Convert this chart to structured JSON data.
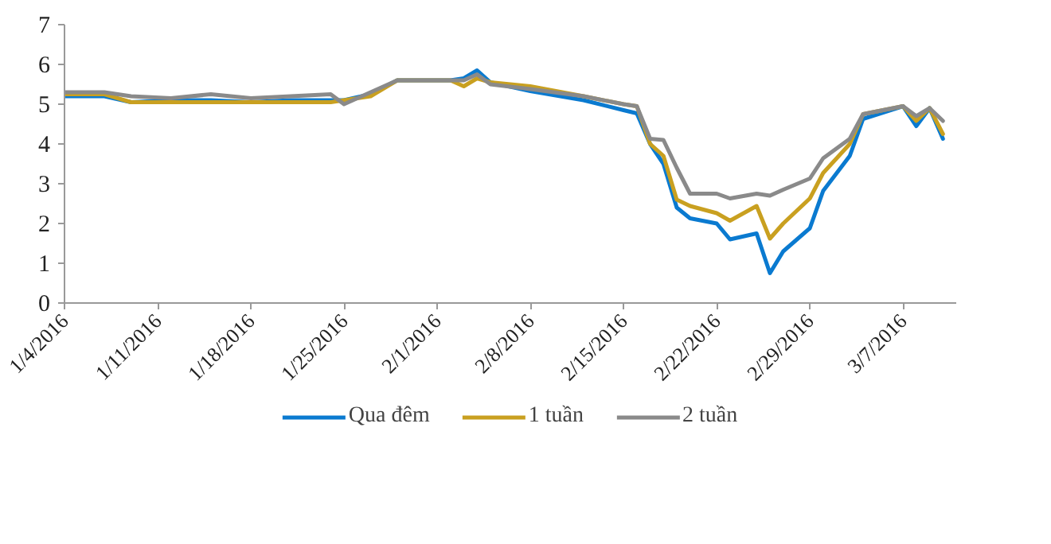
{
  "chart_data": {
    "type": "line",
    "x": [
      "2016-01-04",
      "2016-01-07",
      "2016-01-09",
      "2016-01-12",
      "2016-01-15",
      "2016-01-18",
      "2016-01-21",
      "2016-01-24",
      "2016-01-25",
      "2016-01-27",
      "2016-01-29",
      "2016-02-02",
      "2016-02-03",
      "2016-02-04",
      "2016-02-05",
      "2016-02-08",
      "2016-02-12",
      "2016-02-15",
      "2016-02-16",
      "2016-02-17",
      "2016-02-18",
      "2016-02-19",
      "2016-02-20",
      "2016-02-22",
      "2016-02-23",
      "2016-02-25",
      "2016-02-26",
      "2016-02-27",
      "2016-02-29",
      "2016-03-01",
      "2016-03-03",
      "2016-03-04",
      "2016-03-07",
      "2016-03-08",
      "2016-03-09",
      "2016-03-10"
    ],
    "series": [
      {
        "name": "Qua đêm",
        "color": "#0a7ad0",
        "values": [
          5.2,
          5.2,
          5.05,
          5.1,
          5.1,
          5.05,
          5.1,
          5.1,
          5.1,
          5.25,
          5.6,
          5.6,
          5.65,
          5.85,
          5.55,
          5.33,
          5.1,
          4.85,
          4.77,
          4.0,
          3.5,
          2.4,
          2.13,
          2.0,
          1.6,
          1.75,
          0.75,
          1.3,
          1.88,
          2.82,
          3.7,
          4.63,
          4.95,
          4.45,
          4.9,
          4.13
        ]
      },
      {
        "name": "1 tuần",
        "color": "#c9a020",
        "values": [
          5.25,
          5.25,
          5.05,
          5.05,
          5.05,
          5.05,
          5.05,
          5.05,
          5.1,
          5.2,
          5.6,
          5.6,
          5.45,
          5.65,
          5.55,
          5.45,
          5.2,
          5.0,
          4.95,
          4.0,
          3.7,
          2.6,
          2.44,
          2.26,
          2.07,
          2.44,
          1.62,
          2.0,
          2.63,
          3.27,
          4.0,
          4.75,
          4.95,
          4.58,
          4.9,
          4.25
        ]
      },
      {
        "name": "2 tuần",
        "color": "#8a8a8a",
        "values": [
          5.3,
          5.3,
          5.2,
          5.15,
          5.25,
          5.15,
          5.2,
          5.25,
          5.0,
          5.3,
          5.6,
          5.6,
          5.6,
          5.75,
          5.5,
          5.38,
          5.2,
          5.0,
          4.95,
          4.13,
          4.1,
          3.4,
          2.75,
          2.75,
          2.63,
          2.75,
          2.7,
          2.85,
          3.13,
          3.64,
          4.13,
          4.75,
          4.95,
          4.7,
          4.9,
          4.58
        ]
      }
    ],
    "xlim": [
      "2016-01-04",
      "2016-03-11"
    ],
    "xticks": [
      {
        "value": "2016-01-04",
        "label": "1/4/2016"
      },
      {
        "value": "2016-01-11",
        "label": "1/11/2016"
      },
      {
        "value": "2016-01-18",
        "label": "1/18/2016"
      },
      {
        "value": "2016-01-25",
        "label": "1/25/2016"
      },
      {
        "value": "2016-02-01",
        "label": "2/1/2016"
      },
      {
        "value": "2016-02-08",
        "label": "2/8/2016"
      },
      {
        "value": "2016-02-15",
        "label": "2/15/2016"
      },
      {
        "value": "2016-02-22",
        "label": "2/22/2016"
      },
      {
        "value": "2016-02-29",
        "label": "2/29/2016"
      },
      {
        "value": "2016-03-07",
        "label": "3/7/2016"
      }
    ],
    "ylim": [
      0,
      7
    ],
    "yticks": [
      0,
      1,
      2,
      3,
      4,
      5,
      6,
      7
    ],
    "grid": false,
    "legend": "bottom",
    "marker": "none",
    "line_style": "solid"
  }
}
